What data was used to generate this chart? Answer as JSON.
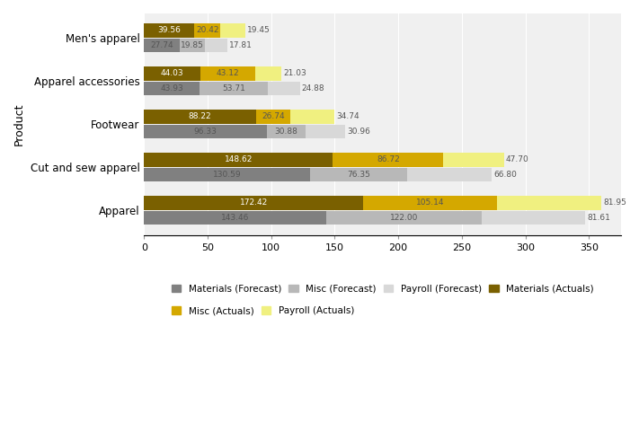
{
  "categories": [
    "Men's apparel",
    "Apparel accessories",
    "Footwear",
    "Cut and sew apparel",
    "Apparel"
  ],
  "actuals": {
    "Materials": [
      39.56,
      44.03,
      88.22,
      148.62,
      172.42
    ],
    "Misc": [
      20.42,
      43.12,
      26.74,
      86.72,
      105.14
    ],
    "Payroll": [
      19.45,
      21.03,
      34.74,
      47.7,
      81.95
    ]
  },
  "forecast": {
    "Materials": [
      27.74,
      43.93,
      96.33,
      130.59,
      143.46
    ],
    "Misc": [
      19.85,
      53.71,
      30.88,
      76.35,
      122.0
    ],
    "Payroll": [
      17.81,
      24.88,
      30.96,
      66.8,
      81.61
    ]
  },
  "colors": {
    "Materials_Forecast": "#808080",
    "Misc_Forecast": "#b8b8b8",
    "Payroll_Forecast": "#d8d8d8",
    "Materials_Actuals": "#7a6000",
    "Misc_Actuals": "#d4a800",
    "Payroll_Actuals": "#f0f080"
  },
  "bar_height": 0.32,
  "xlabel": "",
  "ylabel": "Product",
  "xlim": [
    0,
    375
  ],
  "xticks": [
    0,
    50,
    100,
    150,
    200,
    250,
    300,
    350
  ],
  "background_color": "#ffffff",
  "plot_bg_color": "#f0f0f0",
  "legend_labels_row1": [
    "Materials (Forecast)",
    "Misc (Forecast)",
    "Payroll (Forecast)",
    "Materials (Actuals)"
  ],
  "legend_labels_row2": [
    "Misc (Actuals)",
    "Payroll (Actuals)"
  ],
  "legend_colors_row1": [
    "#808080",
    "#b8b8b8",
    "#d8d8d8",
    "#7a6000"
  ],
  "legend_colors_row2": [
    "#d4a800",
    "#f0f080"
  ]
}
